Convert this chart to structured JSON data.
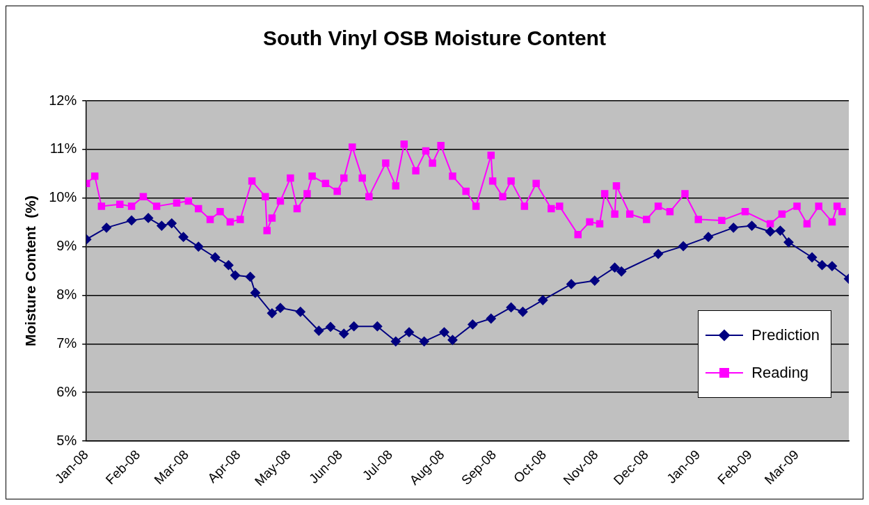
{
  "chart_data": {
    "type": "line",
    "title": "South Vinyl OSB Moisture Content",
    "ylabel": "Moisture Content  (%)",
    "xlim": [
      "2008-01-01",
      "2009-04-01"
    ],
    "xticks": [
      {
        "value": "2008-01-01",
        "label": "Jan-08"
      },
      {
        "value": "2008-02-01",
        "label": "Feb-08"
      },
      {
        "value": "2008-03-01",
        "label": "Mar-08"
      },
      {
        "value": "2008-04-01",
        "label": "Apr-08"
      },
      {
        "value": "2008-05-01",
        "label": "May-08"
      },
      {
        "value": "2008-06-01",
        "label": "Jun-08"
      },
      {
        "value": "2008-07-01",
        "label": "Jul-08"
      },
      {
        "value": "2008-08-01",
        "label": "Aug-08"
      },
      {
        "value": "2008-09-01",
        "label": "Sep-08"
      },
      {
        "value": "2008-10-01",
        "label": "Oct-08"
      },
      {
        "value": "2008-11-01",
        "label": "Nov-08"
      },
      {
        "value": "2008-12-01",
        "label": "Dec-08"
      },
      {
        "value": "2009-01-01",
        "label": "Jan-09"
      },
      {
        "value": "2009-02-01",
        "label": "Feb-09"
      },
      {
        "value": "2009-03-01",
        "label": "Mar-09"
      },
      {
        "value": "2009-04-01",
        "label": null
      }
    ],
    "ylim": [
      5,
      12
    ],
    "yticks": [
      {
        "value": 5,
        "label": "5%"
      },
      {
        "value": 6,
        "label": "6%"
      },
      {
        "value": 7,
        "label": "7%"
      },
      {
        "value": 8,
        "label": "8%"
      },
      {
        "value": 9,
        "label": "9%"
      },
      {
        "value": 10,
        "label": "10%"
      },
      {
        "value": 11,
        "label": "11%"
      },
      {
        "value": 12,
        "label": "12%"
      }
    ],
    "grid": "y",
    "legend": "bottom right",
    "series": [
      {
        "name": "Prediction",
        "color": "#000080",
        "marker": "diamond",
        "x": [
          "2008-01-01",
          "2008-01-13",
          "2008-01-28",
          "2008-02-07",
          "2008-02-15",
          "2008-02-21",
          "2008-02-28",
          "2008-03-08",
          "2008-03-18",
          "2008-03-26",
          "2008-03-30",
          "2008-04-08",
          "2008-04-11",
          "2008-04-21",
          "2008-04-26",
          "2008-05-08",
          "2008-05-19",
          "2008-05-26",
          "2008-06-03",
          "2008-06-09",
          "2008-06-23",
          "2008-07-04",
          "2008-07-12",
          "2008-07-21",
          "2008-08-02",
          "2008-08-07",
          "2008-08-19",
          "2008-08-30",
          "2008-09-11",
          "2008-09-18",
          "2008-09-30",
          "2008-10-17",
          "2008-10-31",
          "2008-11-12",
          "2008-11-16",
          "2008-12-08",
          "2008-12-23",
          "2009-01-07",
          "2009-01-22",
          "2009-02-02",
          "2009-02-13",
          "2009-02-19",
          "2009-02-24",
          "2009-03-10",
          "2009-03-16",
          "2009-03-22",
          "2009-04-01"
        ],
        "values": [
          9.15,
          9.39,
          9.54,
          9.59,
          9.43,
          9.48,
          9.2,
          9.0,
          8.78,
          8.62,
          8.41,
          8.38,
          8.05,
          7.63,
          7.74,
          7.66,
          7.27,
          7.35,
          7.21,
          7.36,
          7.36,
          7.05,
          7.24,
          7.05,
          7.24,
          7.08,
          7.4,
          7.52,
          7.75,
          7.66,
          7.9,
          8.23,
          8.3,
          8.57,
          8.49,
          8.85,
          9.01,
          9.2,
          9.39,
          9.43,
          9.31,
          9.33,
          9.09,
          8.78,
          8.62,
          8.6,
          8.34
        ]
      },
      {
        "name": "Reading",
        "color": "#ff00ff",
        "marker": "square",
        "x": [
          "2008-01-01",
          "2008-01-06",
          "2008-01-10",
          "2008-01-21",
          "2008-01-28",
          "2008-02-04",
          "2008-02-12",
          "2008-02-24",
          "2008-03-02",
          "2008-03-08",
          "2008-03-15",
          "2008-03-21",
          "2008-03-27",
          "2008-04-02",
          "2008-04-09",
          "2008-04-17",
          "2008-04-18",
          "2008-04-21",
          "2008-04-26",
          "2008-05-02",
          "2008-05-06",
          "2008-05-12",
          "2008-05-15",
          "2008-05-23",
          "2008-05-30",
          "2008-06-03",
          "2008-06-08",
          "2008-06-14",
          "2008-06-18",
          "2008-06-28",
          "2008-07-04",
          "2008-07-09",
          "2008-07-16",
          "2008-07-22",
          "2008-07-26",
          "2008-07-31",
          "2008-08-07",
          "2008-08-15",
          "2008-08-21",
          "2008-08-30",
          "2008-08-31",
          "2008-09-06",
          "2008-09-11",
          "2008-09-19",
          "2008-09-26",
          "2008-10-05",
          "2008-10-10",
          "2008-10-21",
          "2008-10-28",
          "2008-11-03",
          "2008-11-06",
          "2008-11-12",
          "2008-11-13",
          "2008-11-21",
          "2008-12-01",
          "2008-12-08",
          "2008-12-15",
          "2008-12-24",
          "2009-01-01",
          "2009-01-15",
          "2009-01-29",
          "2009-02-13",
          "2009-02-20",
          "2009-03-01",
          "2009-03-07",
          "2009-03-14",
          "2009-03-22",
          "2009-03-25",
          "2009-03-28"
        ],
        "values": [
          10.3,
          10.45,
          9.83,
          9.87,
          9.83,
          10.03,
          9.83,
          9.9,
          9.94,
          9.78,
          9.56,
          9.72,
          9.51,
          9.56,
          10.35,
          10.03,
          9.33,
          9.59,
          9.94,
          10.41,
          9.78,
          10.09,
          10.45,
          10.3,
          10.14,
          10.41,
          11.05,
          10.41,
          10.03,
          10.72,
          10.25,
          11.11,
          10.56,
          10.97,
          10.72,
          11.08,
          10.45,
          10.14,
          9.83,
          10.88,
          10.35,
          10.03,
          10.35,
          9.83,
          10.3,
          9.78,
          9.83,
          9.25,
          9.51,
          9.47,
          10.09,
          9.67,
          10.25,
          9.67,
          9.56,
          9.83,
          9.72,
          10.09,
          9.56,
          9.54,
          9.72,
          9.47,
          9.67,
          9.83,
          9.47,
          9.83,
          9.51,
          9.83,
          9.72
        ]
      }
    ]
  }
}
